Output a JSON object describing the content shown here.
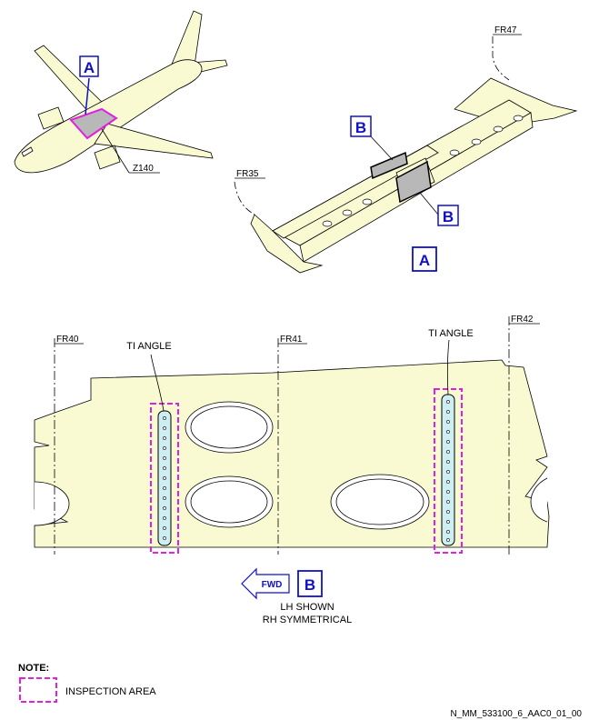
{
  "labels": {
    "view_a_callout_small": "A",
    "view_a_callout_large": "A",
    "view_b_callout_1": "B",
    "view_b_callout_2": "B",
    "view_b_callout_large": "B",
    "zone": "Z140",
    "frame_35": "FR35",
    "frame_47": "FR47",
    "frame_40": "FR40",
    "frame_41": "FR41",
    "frame_42": "FR42",
    "ti_angle_left": "TI ANGLE",
    "ti_angle_right": "TI ANGLE",
    "fwd": "FWD",
    "lh_shown": "LH SHOWN",
    "rh_symmetrical": "RH SYMMETRICAL",
    "note_heading": "NOTE:",
    "inspection_area": "INSPECTION AREA",
    "drawing_ref": "N_MM_533100_6_AAC0_01_00"
  },
  "colors": {
    "structure_fill": "#fafad2",
    "angle_fill": "#cdeef2",
    "inspection_outline": "#e020e0",
    "callout_blue": "#1010c8",
    "panel_gray": "#b8b8b8"
  }
}
